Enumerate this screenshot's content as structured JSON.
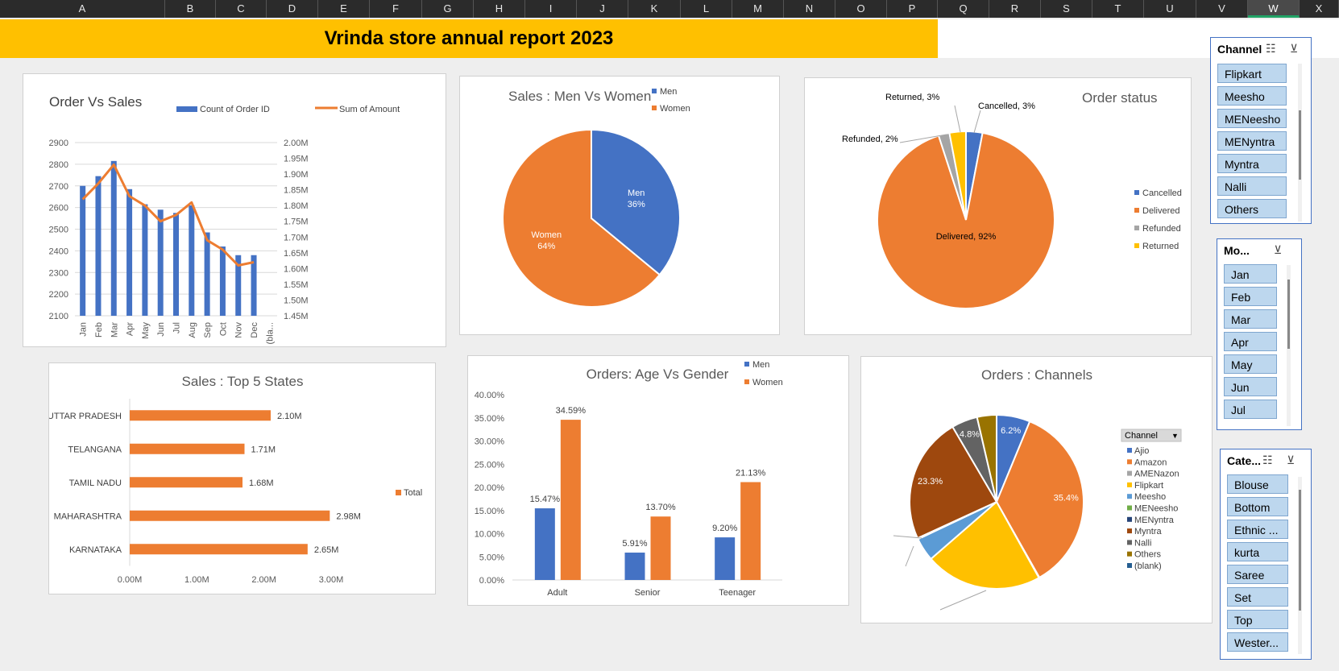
{
  "columns": [
    "A",
    "B",
    "C",
    "D",
    "E",
    "F",
    "G",
    "H",
    "I",
    "J",
    "K",
    "L",
    "M",
    "N",
    "O",
    "P",
    "Q",
    "R",
    "S",
    "T",
    "U",
    "V",
    "W",
    "X"
  ],
  "selected_column": "W",
  "report_title": "Vrinda store annual report 2023",
  "colors": {
    "blue": "#4472c4",
    "orange": "#ed7d31",
    "gray": "#a5a5a5",
    "yellow": "#ffc000",
    "banner": "#ffc000",
    "slicer_item": "#bdd7ee"
  },
  "chart_data": [
    {
      "id": "order_vs_sales",
      "type": "bar",
      "title": "Order Vs Sales",
      "categories": [
        "Jan",
        "Feb",
        "Mar",
        "Apr",
        "May",
        "Jun",
        "Jul",
        "Aug",
        "Sep",
        "Oct",
        "Nov",
        "Dec",
        "(bla..."
      ],
      "series": [
        {
          "name": "Count of Order ID",
          "type": "bar",
          "axis": "left",
          "values": [
            2700,
            2745,
            2815,
            2685,
            2615,
            2590,
            2575,
            2610,
            2485,
            2420,
            2380,
            2380,
            null
          ]
        },
        {
          "name": "Sum of Amount",
          "type": "line",
          "axis": "right",
          "values": [
            1.82,
            1.87,
            1.93,
            1.83,
            1.8,
            1.75,
            1.77,
            1.81,
            1.69,
            1.66,
            1.61,
            1.62,
            null
          ]
        }
      ],
      "y_ticks": [
        2100,
        2200,
        2300,
        2400,
        2500,
        2600,
        2700,
        2800,
        2900
      ],
      "y2_ticks": [
        "1.45M",
        "1.50M",
        "1.55M",
        "1.60M",
        "1.65M",
        "1.70M",
        "1.75M",
        "1.80M",
        "1.85M",
        "1.90M",
        "1.95M",
        "2.00M"
      ],
      "ylim": [
        2100,
        2900
      ],
      "y2lim": [
        1.45,
        2.0
      ]
    },
    {
      "id": "men_vs_women",
      "type": "pie",
      "title": "Sales : Men Vs Women",
      "labels": [
        "Men",
        "Women"
      ],
      "values": [
        36,
        64
      ],
      "colors": [
        "#4472c4",
        "#ed7d31"
      ],
      "data_labels": [
        [
          "Men",
          "36%"
        ],
        [
          "Women",
          "64%"
        ]
      ],
      "legend": [
        "Men",
        "Women"
      ]
    },
    {
      "id": "order_status",
      "type": "pie",
      "title": "Order status",
      "labels": [
        "Cancelled",
        "Delivered",
        "Refunded",
        "Returned"
      ],
      "values": [
        3,
        92,
        2,
        3
      ],
      "colors": [
        "#4472c4",
        "#ed7d31",
        "#a5a5a5",
        "#ffc000"
      ],
      "data_labels": [
        "Cancelled, 3%",
        "Delivered, 92%",
        "Refunded, 2%",
        "Returned, 3%"
      ],
      "legend": [
        "Cancelled",
        "Delivered",
        "Refunded",
        "Returned"
      ]
    },
    {
      "id": "top5_states",
      "type": "bar",
      "title": "Sales : Top 5 States",
      "categories": [
        "UTTAR PRADESH",
        "TELANGANA",
        "TAMIL NADU",
        "MAHARASHTRA",
        "KARNATAKA"
      ],
      "values": [
        2.1,
        1.71,
        1.68,
        2.98,
        2.65
      ],
      "data_labels": [
        "2.10M",
        "1.71M",
        "1.68M",
        "2.98M",
        "2.65M"
      ],
      "x_ticks": [
        "0.00M",
        "1.00M",
        "2.00M",
        "3.00M"
      ],
      "xlim": [
        0,
        3
      ],
      "legend": [
        "Total"
      ]
    },
    {
      "id": "age_vs_gender",
      "type": "bar",
      "title": "Orders: Age Vs Gender",
      "categories": [
        "Adult",
        "Senior",
        "Teenager"
      ],
      "series": [
        {
          "name": "Men",
          "values": [
            15.47,
            5.91,
            9.2
          ],
          "labels": [
            "15.47%",
            "5.91%",
            "9.20%"
          ]
        },
        {
          "name": "Women",
          "values": [
            34.59,
            13.7,
            21.13
          ],
          "labels": [
            "34.59%",
            "13.70%",
            "21.13%"
          ]
        }
      ],
      "y_ticks": [
        "0.00%",
        "5.00%",
        "10.00%",
        "15.00%",
        "20.00%",
        "25.00%",
        "30.00%",
        "35.00%",
        "40.00%"
      ],
      "ylim": [
        0,
        40
      ]
    },
    {
      "id": "orders_channels",
      "type": "pie",
      "title": "Orders : Channels",
      "labels": [
        "Ajio",
        "Amazon",
        "AMENazon",
        "Flipkart",
        "Meesho",
        "MENeesho",
        "MENyntra",
        "Myntra",
        "Nalli",
        "Others",
        "(blank)"
      ],
      "values": [
        6.2,
        35.4,
        0.1,
        21.6,
        4.3,
        0.1,
        0.1,
        23.3,
        4.8,
        3.6,
        0
      ],
      "colors": [
        "#4472c4",
        "#ed7d31",
        "#a5a5a5",
        "#ffc000",
        "#5b9bd5",
        "#70ad47",
        "#264478",
        "#9e480e",
        "#636363",
        "#997300",
        "#255e91"
      ],
      "data_labels": [
        "6.2%",
        "35.4%",
        "",
        "",
        "",
        "",
        "",
        "23.3%",
        "4.8%",
        "",
        ""
      ],
      "legend_title": "Channel",
      "legend": [
        "Ajio",
        "Amazon",
        "AMENazon",
        "Flipkart",
        "Meesho",
        "MENeesho",
        "MENyntra",
        "Myntra",
        "Nalli",
        "Others",
        "(blank)"
      ]
    }
  ],
  "slicers": {
    "channel": {
      "title": "Channel",
      "items": [
        "Flipkart",
        "Meesho",
        "MENeesho",
        "MENyntra",
        "Myntra",
        "Nalli",
        "Others"
      ]
    },
    "month": {
      "title": "Mo...",
      "items": [
        "Jan",
        "Feb",
        "Mar",
        "Apr",
        "May",
        "Jun",
        "Jul"
      ]
    },
    "category": {
      "title": "Cate...",
      "items": [
        "Blouse",
        "Bottom",
        "Ethnic ...",
        "kurta",
        "Saree",
        "Set",
        "Top",
        "Wester..."
      ]
    }
  }
}
